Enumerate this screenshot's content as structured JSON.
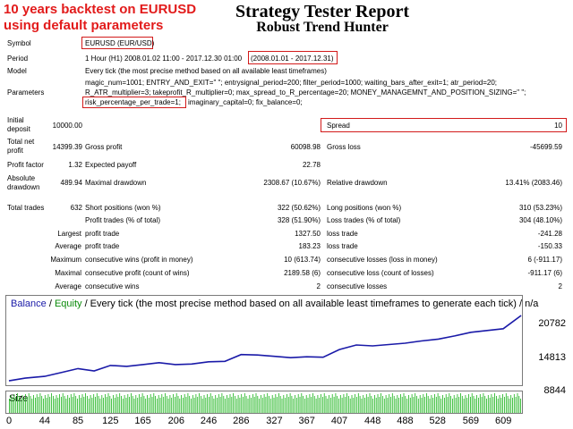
{
  "promo": {
    "line1": "10 years backtest on EURUSD",
    "line2": "using default parameters"
  },
  "report": {
    "title": "Strategy Tester Report",
    "subtitle": "Robust Trend Hunter"
  },
  "symbol": {
    "label": "Symbol",
    "value": "EURUSD (EUR/USD)"
  },
  "period": {
    "label": "Period",
    "value": "1 Hour (H1) 2008.01.02 11:00 - 2017.12.30 01:00",
    "range": "(2008.01.01 - 2017.12.31)"
  },
  "model": {
    "label": "Model",
    "value": "Every tick (the most precise method based on all available least timeframes)"
  },
  "parameters": {
    "label": "Parameters",
    "line1": "magic_num=1001; ENTRY_AND_EXIT=\" \"; entrysignal_period=200; filter_period=1000; waiting_bars_after_exit=1; atr_period=20;",
    "line2": "R_ATR_multiplier=3; takeprofit_R_multiplier=0; max_spread_to_R_percentage=20; MONEY_MANAGEMNT_AND_POSITION_SIZING=\" \";",
    "line3_boxed": "risk_percentage_per_trade=1;",
    "line3_rest": "imaginary_capital=0; fix_balance=0;"
  },
  "initial_deposit": {
    "label_line1": "Initial",
    "label_line2": "deposit",
    "value": "10000.00"
  },
  "spread": {
    "label": "Spread",
    "value": "10"
  },
  "total_net_profit": {
    "label_line1": "Total net",
    "label_line2": "profit",
    "value": "14399.39"
  },
  "gross_profit": {
    "label": "Gross profit",
    "value": "60098.98"
  },
  "gross_loss": {
    "label": "Gross loss",
    "value": "-45699.59"
  },
  "profit_factor": {
    "label": "Profit factor",
    "value": "1.32"
  },
  "expected_payoff": {
    "label": "Expected payoff",
    "value": "22.78"
  },
  "absolute_drawdown": {
    "label_line1": "Absolute",
    "label_line2": "drawdown",
    "value": "489.94"
  },
  "maximal_drawdown": {
    "label": "Maximal drawdown",
    "value": "2308.67 (10.67%)"
  },
  "relative_drawdown": {
    "label": "Relative drawdown",
    "value": "13.41% (2083.46)"
  },
  "total_trades": {
    "label": "Total trades",
    "value": "632"
  },
  "short_positions": {
    "label": "Short positions (won %)",
    "value": "322 (50.62%)"
  },
  "long_positions": {
    "label": "Long positions (won %)",
    "value": "310 (53.23%)"
  },
  "profit_trades": {
    "label": "Profit trades (% of total)",
    "value": "328 (51.90%)"
  },
  "loss_trades": {
    "label": "Loss trades (% of total)",
    "value": "304 (48.10%)"
  },
  "largest": {
    "label": "Largest",
    "profit_label": "profit trade",
    "profit_value": "1327.50",
    "loss_label": "loss trade",
    "loss_value": "-241.28"
  },
  "average": {
    "label": "Average",
    "profit_label": "profit trade",
    "profit_value": "183.23",
    "loss_label": "loss trade",
    "loss_value": "-150.33"
  },
  "maximum": {
    "label": "Maximum",
    "wins_label": "consecutive wins (profit in money)",
    "wins_value": "10 (613.74)",
    "losses_label": "consecutive losses (loss in money)",
    "losses_value": "6 (-911.17)"
  },
  "maximal": {
    "label": "Maximal",
    "profit_label": "consecutive profit (count of wins)",
    "profit_value": "2189.58 (6)",
    "loss_label": "consecutive loss (count of losses)",
    "loss_value": "-911.17 (6)"
  },
  "average_consec": {
    "label": "Average",
    "wins_label": "consecutive wins",
    "wins_value": "2",
    "losses_label": "consecutive losses",
    "losses_value": "2"
  },
  "chart": {
    "legend_balance": "Balance",
    "legend_sep1": " / ",
    "legend_equity": "Equity",
    "legend_rest": " / Every tick (the most precise method based on all available least timeframes to generate each tick) / n/a",
    "size_label": "Size",
    "colors": {
      "balance": "#1a1aa8",
      "equity": "#0a8a0a",
      "volume": "#19b319",
      "box": "#d21a1a"
    }
  },
  "chart_data": {
    "type": "line",
    "series": [
      {
        "name": "Balance",
        "x": [
          0,
          20,
          44,
          66,
          85,
          105,
          125,
          145,
          165,
          185,
          205,
          225,
          246,
          266,
          286,
          306,
          327,
          347,
          367,
          387,
          407,
          428,
          448,
          468,
          488,
          508,
          529,
          549,
          569,
          589,
          609,
          631
        ],
        "y": [
          10000,
          10600,
          11000,
          11900,
          12700,
          12200,
          13400,
          13200,
          13600,
          14000,
          13600,
          13700,
          14200,
          14300,
          15800,
          15700,
          15400,
          15100,
          15300,
          15200,
          16900,
          17900,
          17700,
          18000,
          18300,
          18800,
          19200,
          19900,
          20700,
          21100,
          21500,
          24400
        ]
      }
    ],
    "yticks": [
      "20782",
      "14813",
      "8844"
    ],
    "xticks": [
      "0",
      "44",
      "85",
      "125",
      "165",
      "206",
      "246",
      "286",
      "327",
      "367",
      "407",
      "448",
      "488",
      "528",
      "569",
      "609"
    ],
    "ylim": [
      8844,
      24800
    ],
    "xlim": [
      0,
      632
    ]
  }
}
